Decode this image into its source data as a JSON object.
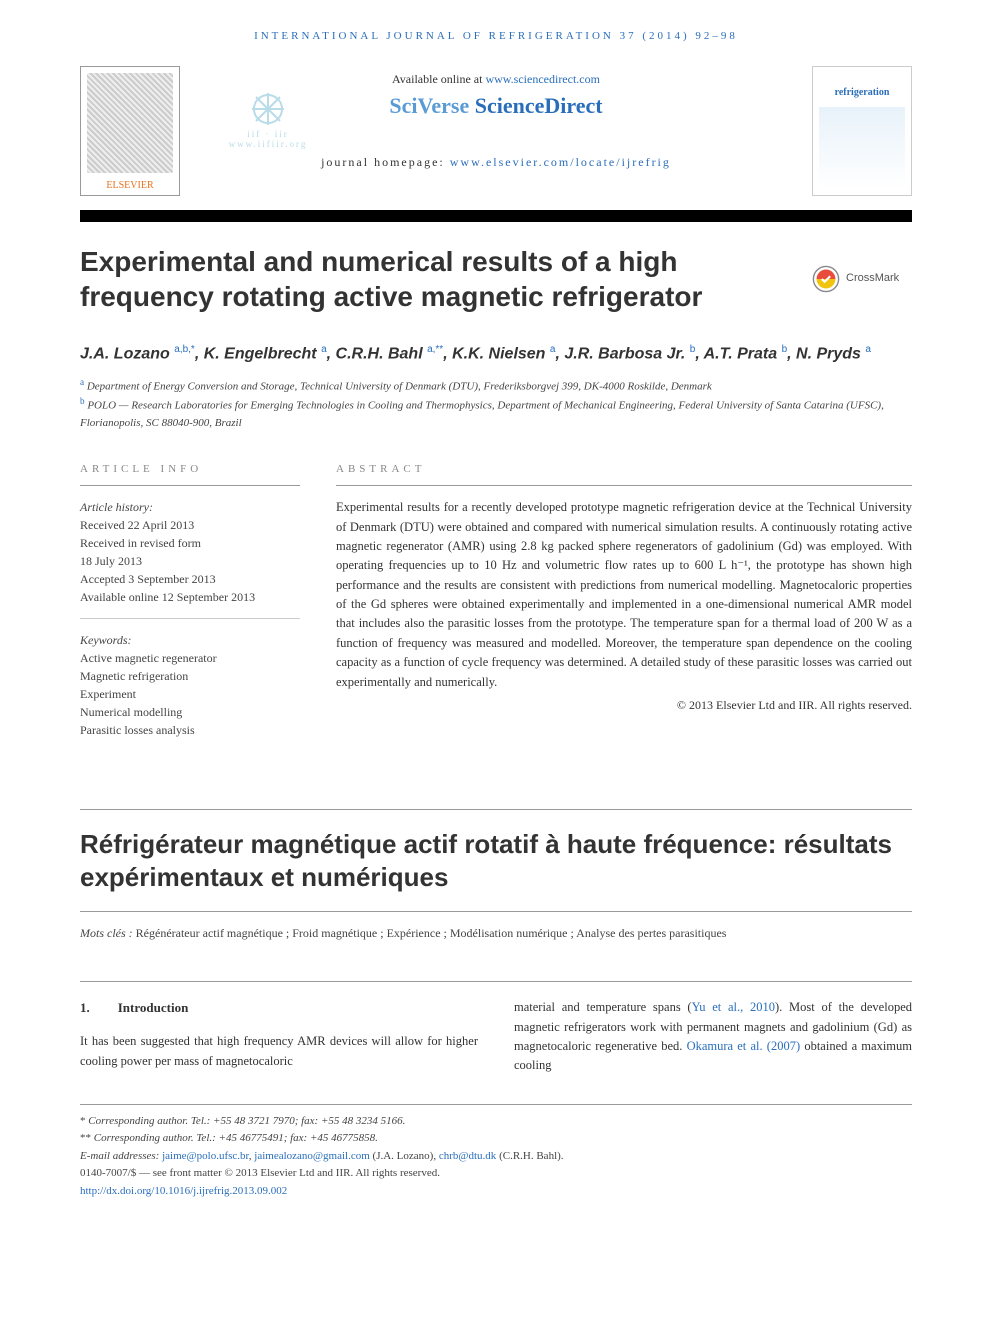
{
  "running_head": "INTERNATIONAL JOURNAL OF REFRIGERATION 37 (2014) 92–98",
  "masthead": {
    "elsevier_label": "ELSEVIER",
    "iif_text": "iif · iir",
    "iif_url": "www.iifiir.org",
    "available_prefix": "Available online at ",
    "available_link": "www.sciencedirect.com",
    "sciverse_a": "SciVerse ",
    "sciverse_b": "ScienceDirect",
    "journal_hp_prefix": "journal homepage: ",
    "journal_hp_link": "www.elsevier.com/locate/ijrefrig",
    "cover_label": "refrigeration"
  },
  "crossmark_label": "CrossMark",
  "title": "Experimental and numerical results of a high frequency rotating active magnetic refrigerator",
  "authors_html": "J.A. Lozano <sup>a,b,*</sup>, K. Engelbrecht <sup>a</sup>, C.R.H. Bahl <sup>a,**</sup>, K.K. Nielsen <sup>a</sup>, J.R. Barbosa Jr. <sup>b</sup>, A.T. Prata <sup>b</sup>, N. Pryds <sup>a</sup>",
  "affiliations": [
    {
      "sup": "a",
      "text": "Department of Energy Conversion and Storage, Technical University of Denmark (DTU), Frederiksborgvej 399, DK-4000 Roskilde, Denmark"
    },
    {
      "sup": "b",
      "text": "POLO — Research Laboratories for Emerging Technologies in Cooling and Thermophysics, Department of Mechanical Engineering, Federal University of Santa Catarina (UFSC), Florianopolis, SC 88040-900, Brazil"
    }
  ],
  "article_info": {
    "head": "ARTICLE INFO",
    "history_label": "Article history:",
    "history": [
      "Received 22 April 2013",
      "Received in revised form",
      "18 July 2013",
      "Accepted 3 September 2013",
      "Available online 12 September 2013"
    ],
    "keywords_label": "Keywords:",
    "keywords": [
      "Active magnetic regenerator",
      "Magnetic refrigeration",
      "Experiment",
      "Numerical modelling",
      "Parasitic losses analysis"
    ]
  },
  "abstract": {
    "head": "ABSTRACT",
    "text": "Experimental results for a recently developed prototype magnetic refrigeration device at the Technical University of Denmark (DTU) were obtained and compared with numerical simulation results. A continuously rotating active magnetic regenerator (AMR) using 2.8 kg packed sphere regenerators of gadolinium (Gd) was employed. With operating frequencies up to 10 Hz and volumetric flow rates up to 600 L h⁻¹, the prototype has shown high performance and the results are consistent with predictions from numerical modelling. Magnetocaloric properties of the Gd spheres were obtained experimentally and implemented in a one-dimensional numerical AMR model that includes also the parasitic losses from the prototype. The temperature span for a thermal load of 200 W as a function of frequency was measured and modelled. Moreover, the temperature span dependence on the cooling capacity as a function of cycle frequency was determined. A detailed study of these parasitic losses was carried out experimentally and numerically.",
    "copyright": "© 2013 Elsevier Ltd and IIR. All rights reserved."
  },
  "alt_title": "Réfrigérateur magnétique actif rotatif à haute fréquence: résultats expérimentaux et numériques",
  "mots_cles_label": "Mots clés : ",
  "mots_cles": "Régénérateur actif magnétique ; Froid magnétique ; Expérience ; Modélisation numérique ; Analyse des pertes parasitiques",
  "intro": {
    "num": "1.",
    "heading": "Introduction",
    "col1": "It has been suggested that high frequency AMR devices will allow for higher cooling power per mass of magnetocaloric",
    "col2_a": "material and temperature spans (",
    "col2_cite1": "Yu et al., 2010",
    "col2_b": "). Most of the developed magnetic refrigerators work with permanent magnets and gadolinium (Gd) as magnetocaloric regenerative bed. ",
    "col2_cite2": "Okamura et al. (2007)",
    "col2_c": " obtained a maximum cooling"
  },
  "footnotes": {
    "star1_label": "* ",
    "star1": "Corresponding author. Tel.: +55 48 3721 7970; fax: +55 48 3234 5166.",
    "star2_label": "** ",
    "star2": "Corresponding author. Tel.: +45 46775491; fax: +45 46775858.",
    "email_label": "E-mail addresses: ",
    "email1": "jaime@polo.ufsc.br",
    "email_sep1": ", ",
    "email2": "jaimealozano@gmail.com",
    "email_attr1": " (J.A. Lozano), ",
    "email3": "chrb@dtu.dk",
    "email_attr2": " (C.R.H. Bahl).",
    "issn_line": "0140-7007/$ — see front matter © 2013 Elsevier Ltd and IIR. All rights reserved.",
    "doi": "http://dx.doi.org/10.1016/j.ijrefrig.2013.09.002"
  },
  "colors": {
    "link": "#2a6ebb",
    "elsevier_orange": "#e9711c",
    "rule": "#999999"
  }
}
